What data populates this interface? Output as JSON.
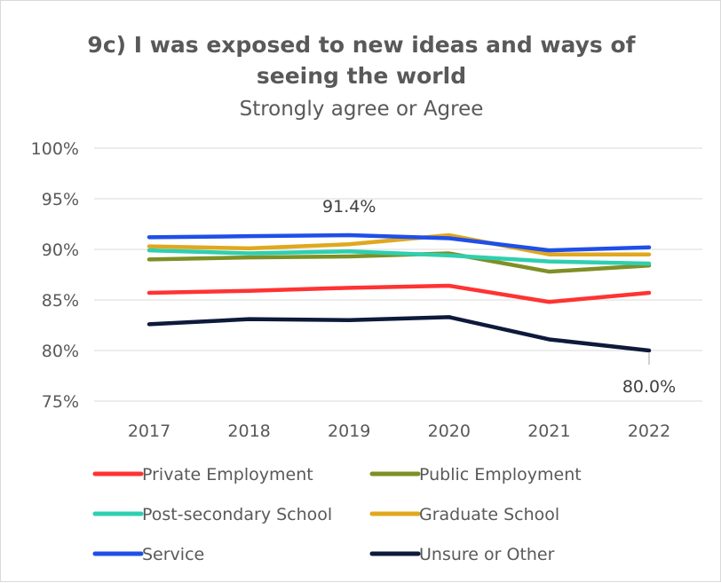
{
  "chart_data": {
    "type": "line",
    "title_line1": "9c) I was exposed to new ideas and ways of",
    "title_line2": "seeing the world",
    "subtitle": "Strongly agree or Agree",
    "x": [
      "2017",
      "2018",
      "2019",
      "2020",
      "2021",
      "2022"
    ],
    "ylim": [
      0.75,
      1.0
    ],
    "yticks": [
      {
        "value": 1.0,
        "label": "100%"
      },
      {
        "value": 0.95,
        "label": "95%"
      },
      {
        "value": 0.9,
        "label": "90%"
      },
      {
        "value": 0.85,
        "label": "85%"
      },
      {
        "value": 0.8,
        "label": "80%"
      },
      {
        "value": 0.75,
        "label": "75%"
      }
    ],
    "grid": true,
    "legend_position": "bottom",
    "series": [
      {
        "name": "Private Employment",
        "color": "#ff3333",
        "values": [
          0.857,
          0.859,
          0.862,
          0.864,
          0.848,
          0.857
        ]
      },
      {
        "name": "Public Employment",
        "color": "#7f8f25",
        "values": [
          0.89,
          0.892,
          0.893,
          0.896,
          0.878,
          0.884
        ]
      },
      {
        "name": "Post-secondary School",
        "color": "#2ecfb0",
        "values": [
          0.899,
          0.896,
          0.898,
          0.894,
          0.888,
          0.886
        ]
      },
      {
        "name": "Graduate School",
        "color": "#e0a81e",
        "values": [
          0.903,
          0.901,
          0.905,
          0.914,
          0.895,
          0.895
        ]
      },
      {
        "name": "Service",
        "color": "#1f4fe8",
        "values": [
          0.912,
          0.913,
          0.914,
          0.911,
          0.899,
          0.902
        ]
      },
      {
        "name": "Unsure or Other",
        "color": "#0e1a3b",
        "values": [
          0.826,
          0.831,
          0.83,
          0.833,
          0.811,
          0.8
        ]
      }
    ],
    "annotations": [
      {
        "text": "91.4%",
        "series": 4,
        "index": 2,
        "placement": "above"
      },
      {
        "text": "80.0%",
        "series": 5,
        "index": 5,
        "placement": "below-leader"
      }
    ]
  }
}
